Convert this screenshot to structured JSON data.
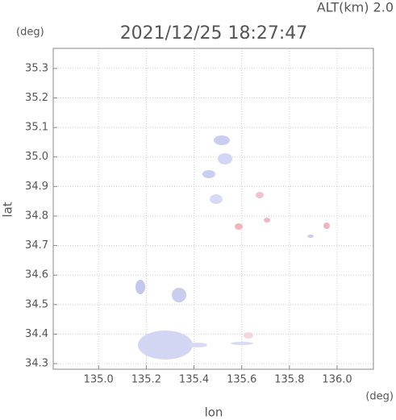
{
  "chart_data": {
    "type": "map",
    "title": "2021/12/25 18:27:47",
    "subtitle": "ALT(km) 2.0",
    "xlabel": "lon",
    "ylabel": "lat",
    "x_unit": "(deg)",
    "y_unit": "(deg)",
    "xlim": [
      134.81,
      136.152
    ],
    "ylim": [
      34.281,
      35.368
    ],
    "xticks": [
      {
        "value": 135.0,
        "label": "135.0"
      },
      135.2,
      135.4,
      135.6,
      135.8,
      {
        "value": 136.0,
        "label": "136.0"
      }
    ],
    "yticks": [
      34.3,
      34.4,
      34.5,
      34.6,
      34.7,
      34.8,
      34.9,
      {
        "value": 35.0,
        "label": "35.0"
      },
      35.1,
      35.2,
      35.3
    ],
    "grid": true
  }
}
